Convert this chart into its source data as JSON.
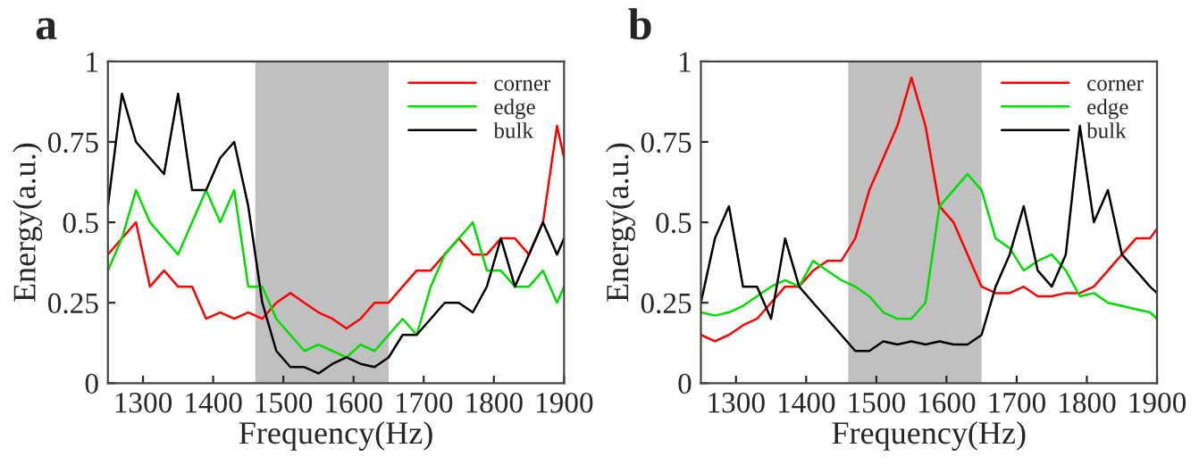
{
  "chart_data": [
    {
      "type": "line",
      "title": "a",
      "xlabel": "Frequency(Hz)",
      "ylabel": "Energy(a.u.)",
      "x": [
        1250,
        1270,
        1290,
        1310,
        1330,
        1350,
        1370,
        1390,
        1410,
        1430,
        1450,
        1470,
        1490,
        1510,
        1530,
        1550,
        1570,
        1590,
        1610,
        1630,
        1650,
        1670,
        1690,
        1710,
        1730,
        1750,
        1770,
        1790,
        1810,
        1830,
        1850,
        1870,
        1890,
        1900
      ],
      "series": [
        {
          "name": "corner",
          "color": "#ff0000",
          "values": [
            0.4,
            0.45,
            0.5,
            0.3,
            0.35,
            0.3,
            0.3,
            0.2,
            0.22,
            0.2,
            0.22,
            0.2,
            0.25,
            0.28,
            0.25,
            0.22,
            0.2,
            0.17,
            0.2,
            0.25,
            0.25,
            0.3,
            0.35,
            0.35,
            0.4,
            0.45,
            0.4,
            0.4,
            0.45,
            0.45,
            0.4,
            0.5,
            0.8,
            0.7
          ]
        },
        {
          "name": "edge",
          "color": "#00dd00",
          "values": [
            0.35,
            0.45,
            0.6,
            0.5,
            0.45,
            0.4,
            0.5,
            0.6,
            0.5,
            0.6,
            0.3,
            0.3,
            0.2,
            0.15,
            0.1,
            0.12,
            0.1,
            0.08,
            0.12,
            0.1,
            0.15,
            0.2,
            0.15,
            0.3,
            0.4,
            0.45,
            0.5,
            0.35,
            0.35,
            0.3,
            0.3,
            0.35,
            0.25,
            0.3
          ]
        },
        {
          "name": "bulk",
          "color": "#000000",
          "values": [
            0.55,
            0.9,
            0.75,
            0.7,
            0.65,
            0.9,
            0.6,
            0.6,
            0.7,
            0.75,
            0.55,
            0.25,
            0.1,
            0.05,
            0.05,
            0.03,
            0.06,
            0.08,
            0.06,
            0.05,
            0.08,
            0.15,
            0.15,
            0.2,
            0.25,
            0.25,
            0.22,
            0.3,
            0.45,
            0.3,
            0.4,
            0.5,
            0.4,
            0.45
          ]
        }
      ],
      "xlim": [
        1250,
        1900
      ],
      "xticks": [
        1300,
        1400,
        1500,
        1600,
        1700,
        1800,
        1900
      ],
      "ylim": [
        0,
        1
      ],
      "yticks": [
        0,
        0.25,
        0.5,
        0.75,
        1
      ],
      "bands": [
        {
          "axis": "x",
          "from": 1460,
          "to": 1650,
          "color": "#c0c0c0"
        }
      ],
      "legend": "top right",
      "grid": false
    },
    {
      "type": "line",
      "title": "b",
      "xlabel": "Frequency(Hz)",
      "ylabel": "Energy(a.u.)",
      "x": [
        1250,
        1270,
        1290,
        1310,
        1330,
        1350,
        1370,
        1390,
        1410,
        1430,
        1450,
        1470,
        1490,
        1510,
        1530,
        1550,
        1570,
        1590,
        1610,
        1630,
        1650,
        1670,
        1690,
        1710,
        1730,
        1750,
        1770,
        1790,
        1810,
        1830,
        1850,
        1870,
        1890,
        1900
      ],
      "series": [
        {
          "name": "corner",
          "color": "#ff0000",
          "values": [
            0.15,
            0.13,
            0.15,
            0.18,
            0.2,
            0.25,
            0.3,
            0.3,
            0.35,
            0.38,
            0.38,
            0.45,
            0.6,
            0.7,
            0.8,
            0.95,
            0.8,
            0.55,
            0.5,
            0.4,
            0.3,
            0.28,
            0.28,
            0.3,
            0.27,
            0.27,
            0.28,
            0.28,
            0.3,
            0.35,
            0.4,
            0.45,
            0.45,
            0.48
          ]
        },
        {
          "name": "edge",
          "color": "#00dd00",
          "values": [
            0.22,
            0.21,
            0.22,
            0.24,
            0.27,
            0.3,
            0.32,
            0.3,
            0.38,
            0.35,
            0.32,
            0.3,
            0.27,
            0.22,
            0.2,
            0.2,
            0.25,
            0.55,
            0.6,
            0.65,
            0.6,
            0.45,
            0.42,
            0.35,
            0.38,
            0.4,
            0.35,
            0.27,
            0.28,
            0.25,
            0.24,
            0.23,
            0.22,
            0.2
          ]
        },
        {
          "name": "bulk",
          "color": "#000000",
          "values": [
            0.25,
            0.45,
            0.55,
            0.3,
            0.3,
            0.2,
            0.45,
            0.3,
            0.25,
            0.2,
            0.15,
            0.1,
            0.1,
            0.13,
            0.12,
            0.13,
            0.12,
            0.13,
            0.12,
            0.12,
            0.15,
            0.3,
            0.4,
            0.55,
            0.35,
            0.3,
            0.4,
            0.8,
            0.5,
            0.6,
            0.4,
            0.35,
            0.3,
            0.28
          ]
        }
      ],
      "xlim": [
        1250,
        1900
      ],
      "xticks": [
        1300,
        1400,
        1500,
        1600,
        1700,
        1800,
        1900
      ],
      "ylim": [
        0,
        1
      ],
      "yticks": [
        0,
        0.25,
        0.5,
        0.75,
        1
      ],
      "bands": [
        {
          "axis": "x",
          "from": 1460,
          "to": 1650,
          "color": "#c0c0c0"
        }
      ],
      "legend": "top right",
      "grid": false
    }
  ]
}
